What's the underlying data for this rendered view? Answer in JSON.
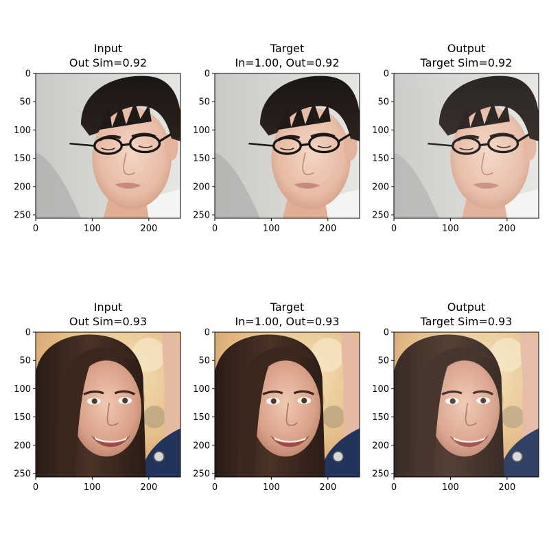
{
  "panels": [
    {
      "title_top": "Input",
      "title_bottom": "Out Sim=0.92",
      "image": "face-man-glasses-input"
    },
    {
      "title_top": "Target",
      "title_bottom": "In=1.00, Out=0.92",
      "image": "face-man-glasses-target"
    },
    {
      "title_top": "Output",
      "title_bottom": "Target Sim=0.92",
      "image": "face-man-glasses-output"
    },
    {
      "title_top": "Input",
      "title_bottom": "Out Sim=0.93",
      "image": "face-woman-smiling-input"
    },
    {
      "title_top": "Target",
      "title_bottom": "In=1.00, Out=0.93",
      "image": "face-woman-smiling-target"
    },
    {
      "title_top": "Output",
      "title_bottom": "Target Sim=0.93",
      "image": "face-woman-smiling-output"
    }
  ],
  "axes": {
    "x_ticks": [
      "0",
      "100",
      "200"
    ],
    "y_ticks": [
      "0",
      "50",
      "100",
      "150",
      "200",
      "250"
    ],
    "xlim": [
      0,
      256
    ],
    "ylim": [
      256,
      0
    ]
  }
}
